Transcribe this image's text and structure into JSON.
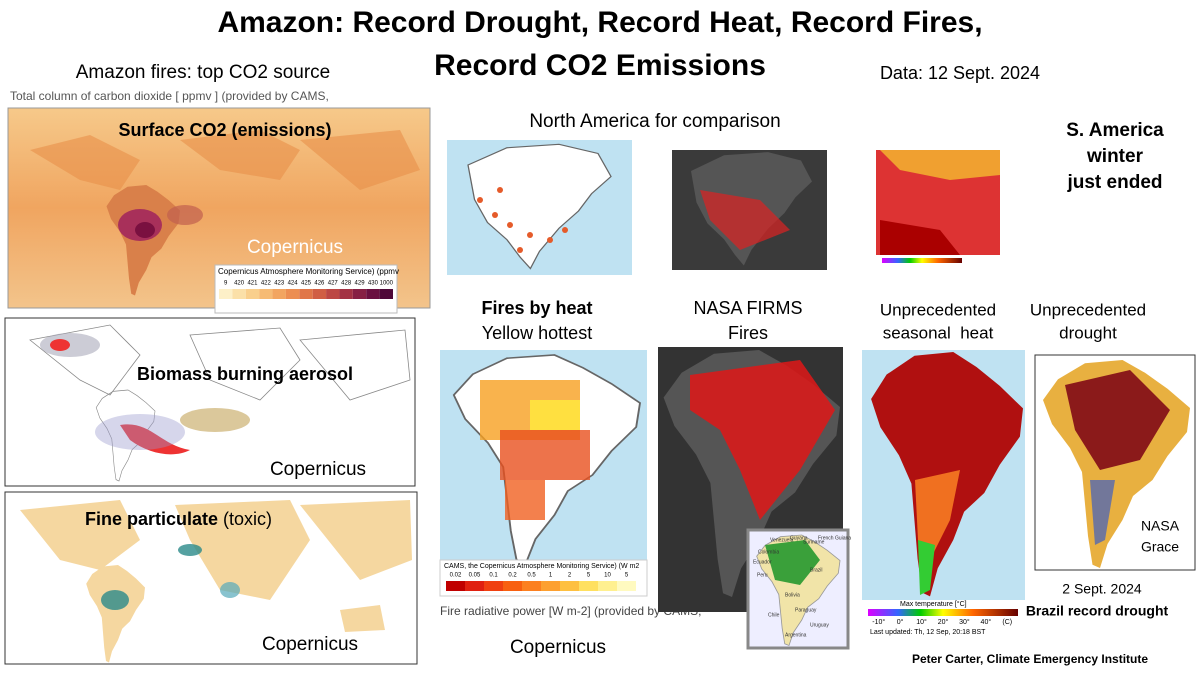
{
  "header": {
    "title_line1": "Amazon: Record Drought, Record Heat, Record  Fires,",
    "title_line2": "Record CO2 Emissions",
    "left_heading": "Amazon fires: top CO2 source",
    "date": "Data: 12 Sept. 2024"
  },
  "co2_panel": {
    "caption": "Total column of carbon dioxide [ ppmv ] (provided by CAMS,",
    "label": "Surface CO2 (emissions)",
    "source": "Copernicus",
    "legend_title": "Copernicus Atmosphere Monitoring Service) (ppmv",
    "legend_ticks": [
      "9",
      "420",
      "421",
      "422",
      "423",
      "424",
      "425",
      "426",
      "427",
      "428",
      "429",
      "430",
      "1000"
    ]
  },
  "aerosol_panel": {
    "label": "Biomass burning aerosol",
    "source": "Copernicus"
  },
  "particulate_panel": {
    "label_bold": "Fine particulate",
    "label_rest": " (toxic)",
    "source": "Copernicus"
  },
  "north_america": {
    "heading": "North America for comparison"
  },
  "season_note": {
    "lines": [
      "S. America",
      "winter",
      "just ended"
    ]
  },
  "fires_heat_panel": {
    "heading": [
      "Fires by heat",
      "Yellow hottest"
    ],
    "legend_title": "CAMS, the Copernicus Atmosphere Monitoring Service) (W m2",
    "legend_ticks": [
      "0.02",
      "0.05",
      "0.1",
      "0.2",
      "0.5",
      "1",
      "2",
      "5",
      "10",
      "5"
    ],
    "caption": "Fire radiative power [W m-2] (provided by CAMS,",
    "source": "Copernicus"
  },
  "firms_panel": {
    "heading": [
      "NASA FIRMS",
      "Fires"
    ],
    "inset_labels": [
      "Venezuela",
      "Guyana",
      "Suriname",
      "French Guiana",
      "Colombia",
      "Ecuador",
      "Peru",
      "Brazil",
      "Bolivia",
      "Paraguay",
      "Chile",
      "Uruguay",
      "Argentina"
    ]
  },
  "heat_panel": {
    "heading": [
      "Unprecedented",
      "seasonal  heat"
    ],
    "legend_title": "Max temperature [°C]",
    "legend_ticks": [
      "-10°",
      "0°",
      "10°",
      "20°",
      "30°",
      "40°",
      "(C)"
    ],
    "updated": "Last updated: Th, 12 Sep, 20:18 BST"
  },
  "drought_panel": {
    "heading": [
      "Unprecedented",
      "drought"
    ],
    "source": [
      "NASA",
      "Grace"
    ],
    "date": "2 Sept. 2024",
    "caption": "Brazil record drought"
  },
  "credit": "Peter Carter, Climate Emergency Institute"
}
